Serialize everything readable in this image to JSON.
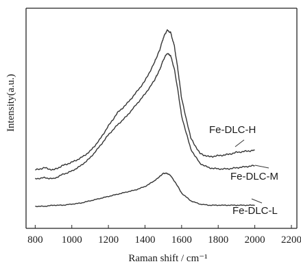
{
  "chart_data": {
    "type": "line",
    "xlabel": "Raman shift / cm⁻¹",
    "ylabel": "Intensity(a.u.)",
    "xlim": [
      750,
      2230
    ],
    "ylim": [
      0,
      100
    ],
    "x_ticks": [
      800,
      1000,
      1200,
      1400,
      1600,
      1800,
      2000,
      2200
    ],
    "y_ticks_labeled": false,
    "grid": false,
    "legend": "none",
    "line_color": "#333333",
    "series": [
      {
        "name": "Fe-DLC-H",
        "x": [
          800,
          850,
          900,
          950,
          1000,
          1050,
          1100,
          1150,
          1200,
          1250,
          1300,
          1350,
          1400,
          1450,
          1480,
          1500,
          1520,
          1540,
          1560,
          1580,
          1600,
          1650,
          1700,
          1750,
          1800,
          1850,
          1900,
          1950,
          2000
        ],
        "y": [
          26.5,
          27.5,
          26.5,
          28.5,
          30,
          32,
          35,
          40,
          46.5,
          52.5,
          56.5,
          61.5,
          67,
          75,
          81,
          86.5,
          90,
          89,
          83,
          72,
          59,
          41,
          34,
          32.5,
          33,
          33.5,
          34.5,
          35,
          35.5
        ]
      },
      {
        "name": "Fe-DLC-M",
        "x": [
          800,
          850,
          900,
          950,
          1000,
          1050,
          1100,
          1150,
          1200,
          1250,
          1300,
          1350,
          1400,
          1450,
          1480,
          1500,
          1520,
          1540,
          1560,
          1580,
          1600,
          1650,
          1700,
          1750,
          1800,
          1850,
          1900,
          1950,
          2000
        ],
        "y": [
          22.5,
          23,
          22.5,
          24.5,
          26,
          28.5,
          32,
          37,
          42.5,
          47,
          51,
          56,
          61,
          67,
          72,
          76.5,
          79.5,
          78.5,
          72.5,
          62.5,
          51,
          36,
          29.5,
          27.5,
          27,
          27,
          27.5,
          28,
          28.5
        ]
      },
      {
        "name": "Fe-DLC-L",
        "x": [
          800,
          850,
          900,
          950,
          1000,
          1050,
          1100,
          1150,
          1200,
          1250,
          1300,
          1350,
          1400,
          1450,
          1480,
          1500,
          1520,
          1540,
          1560,
          1580,
          1600,
          1650,
          1700,
          1750,
          1800,
          1850,
          1900,
          1950,
          2000
        ],
        "y": [
          10,
          10,
          10.5,
          10.5,
          11,
          11.5,
          12.5,
          13.5,
          14.5,
          15.5,
          16.5,
          17.5,
          19,
          21.5,
          23.5,
          25,
          25,
          24,
          21.5,
          19,
          16,
          12.5,
          11,
          10.5,
          10.5,
          10.5,
          10.5,
          10.5,
          10.5
        ]
      }
    ]
  }
}
